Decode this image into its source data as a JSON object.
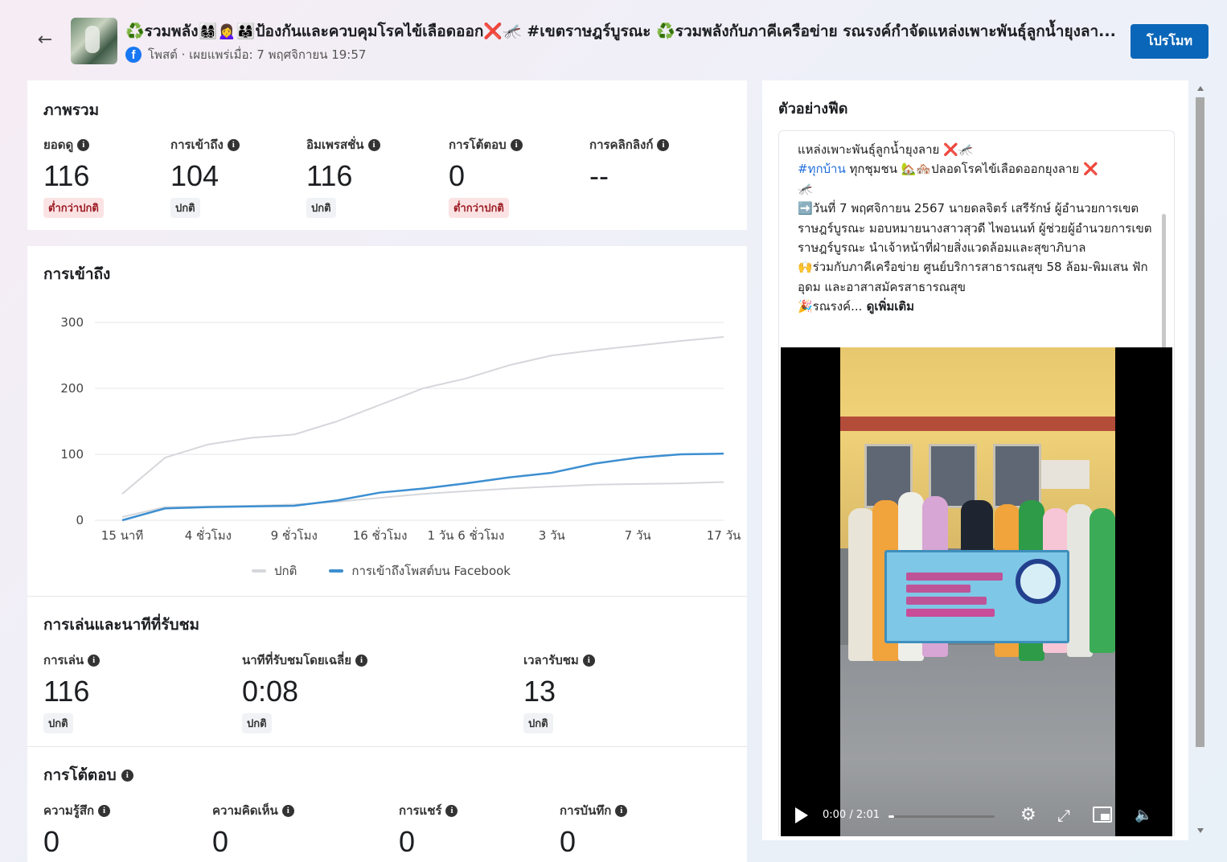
{
  "header": {
    "title": "♻️รวมพลัง👩‍👩‍👧‍👦🙍‍♀️👨‍👩‍👧ป้องกันและควบคุมโรคไข้เลือดออก❌🦟 #เขตราษฎร์บูรณะ ♻️รวมพลังกับภาคีเครือข่าย รณรงค์กำจัดแหล่งเพาะพันธุ์ลูกน้ำยุงลา...",
    "meta": "โพสต์ · เผยแพร่เมื่อ: 7 พฤศจิกายน 19:57",
    "promote_label": "โปรโมท",
    "fb_letter": "f"
  },
  "overview": {
    "title": "ภาพรวม",
    "metrics": [
      {
        "label": "ยอดดู",
        "value": "116",
        "badge": "ต่ำกว่าปกติ",
        "badge_type": "low"
      },
      {
        "label": "การเข้าถึง",
        "value": "104",
        "badge": "ปกติ",
        "badge_type": "normal"
      },
      {
        "label": "อิมเพรสชั่น",
        "value": "116",
        "badge": "ปกติ",
        "badge_type": "normal"
      },
      {
        "label": "การโต้ตอบ",
        "value": "0",
        "badge": "ต่ำกว่าปกติ",
        "badge_type": "low"
      },
      {
        "label": "การคลิกลิงก์",
        "value": "--",
        "badge": "",
        "badge_type": ""
      }
    ]
  },
  "reach": {
    "title": "การเข้าถึง",
    "legend": [
      "ปกติ",
      "การเข้าถึงโพสต์บน Facebook"
    ]
  },
  "chart_data": {
    "type": "line",
    "title": "การเข้าถึง",
    "xlabel": "",
    "ylabel": "",
    "categories": [
      "15 นาที",
      "4 ชั่วโมง",
      "9 ชั่วโมง",
      "16 ชั่วโมง",
      "1 วัน 6 ชั่วโมง",
      "3 วัน",
      "7 วัน",
      "17 วัน"
    ],
    "yticks": [
      0,
      100,
      200,
      300
    ],
    "ylim": [
      0,
      300
    ],
    "grid": true,
    "legend_position": "bottom",
    "x": [
      0,
      0.5,
      1,
      1.5,
      2,
      2.5,
      3,
      3.5,
      4,
      4.5,
      5,
      5.5,
      6,
      6.5,
      7
    ],
    "series": [
      {
        "name": "ปกติ",
        "color": "#d5d7db",
        "values": [
          40,
          95,
          115,
          125,
          130,
          150,
          175,
          200,
          215,
          235,
          250,
          258,
          265,
          272,
          278
        ]
      },
      {
        "name": "การเข้าถึงโพสต์บน Facebook",
        "color": "#3d8fd1",
        "values": [
          0,
          18,
          20,
          21,
          22,
          30,
          42,
          48,
          56,
          65,
          72,
          86,
          95,
          100,
          101
        ]
      },
      {
        "name": "",
        "color": "#d5d7db",
        "values": [
          5,
          20,
          21,
          22,
          24,
          28,
          34,
          40,
          44,
          48,
          51,
          54,
          55,
          56,
          58
        ]
      }
    ]
  },
  "playback": {
    "title": "การเล่นและนาทีที่รับชม",
    "metrics": [
      {
        "label": "การเล่น",
        "value": "116",
        "badge": "ปกติ"
      },
      {
        "label": "นาทีที่รับชมโดยเฉลี่ย",
        "value": "0:08",
        "badge": "ปกติ"
      },
      {
        "label": "เวลารับชม",
        "value": "13",
        "badge": "ปกติ"
      }
    ]
  },
  "interactions": {
    "title": "การโต้ตอบ",
    "metrics": [
      {
        "label": "ความรู้สึก",
        "value": "0"
      },
      {
        "label": "ความคิดเห็น",
        "value": "0"
      },
      {
        "label": "การแชร์",
        "value": "0"
      },
      {
        "label": "การบันทึก",
        "value": "0"
      }
    ]
  },
  "feed": {
    "title": "ตัวอย่างฟีด",
    "line1": "แหล่งเพาะพันธุ์ลูกน้ำยุงลาย ❌🦟",
    "hashtag": "#ทุกบ้าน",
    "line2_rest": " ทุกชุมชน 🏡🏘️ปลอดโรคไข้เลือดออกยุงลาย ❌",
    "line3": "🦟",
    "paragraph1": "➡️วันที่ 7 พฤศจิกายน 2567 นายดลจิตร์ เสรีรักษ์ ผู้อำนวยการเขตราษฎร์บูรณะ มอบหมายนางสาวสุวดี ไพอนนท์ ผู้ช่วยผู้อำนวยการเขตราษฎร์บูรณะ นำเจ้าหน้าที่ฝ่ายสิ่งแวดล้อมและสุขาภิบาล",
    "paragraph2": "🙌ร่วมกับภาคีเครือข่าย ศูนย์บริการสาธารณสุข 58 ล้อม-พิมเสน ฟักอุดม และอาสาสมัครสาธารณสุข",
    "paragraph3": "🎉รณรงค์...",
    "see_more": " ดูเพิ่มเติม",
    "video_time": "0:00 / 2:01",
    "video_progress": 0.05
  }
}
